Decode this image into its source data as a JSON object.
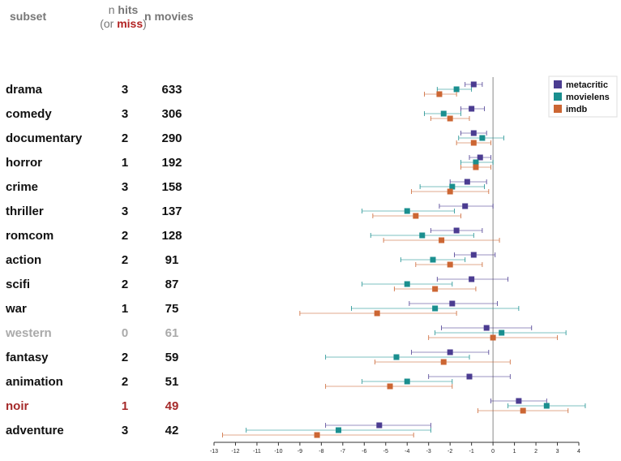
{
  "headers": {
    "subset": "subset",
    "hits_line1_prefix": "n ",
    "hits_line1_bold": "hits",
    "hits_line2_prefix": "(or ",
    "hits_line2_miss": "miss",
    "hits_line2_suffix": ")",
    "movies": "n movies"
  },
  "colors": {
    "metacritic": "#4b3c91",
    "movielens": "#1a8f8f",
    "imdb": "#cc6633",
    "text_default": "#111111",
    "text_western": "#aaaaaa",
    "text_noir": "#a52a2a"
  },
  "chart_data": {
    "type": "scatter",
    "x_ticks": [
      -13,
      -12,
      -11,
      -10,
      -9,
      -8,
      -7,
      -6,
      -5,
      -4,
      -3,
      -2,
      -1,
      0,
      1,
      2,
      3,
      4
    ],
    "xlim": [
      -13,
      4
    ],
    "reference_line_x": 0,
    "legend": [
      "metacritic",
      "movielens",
      "imdb"
    ],
    "legend_placement": "top-right",
    "rows": [
      {
        "subset": "drama",
        "hits": "3",
        "movies": "633",
        "style": "default",
        "metacritic": {
          "est": -0.9,
          "lo": -1.3,
          "hi": -0.5
        },
        "movielens": {
          "est": -1.7,
          "lo": -2.6,
          "hi": -1.0
        },
        "imdb": {
          "est": -2.5,
          "lo": -3.2,
          "hi": -1.7
        }
      },
      {
        "subset": "comedy",
        "hits": "3",
        "movies": "306",
        "style": "default",
        "metacritic": {
          "est": -1.0,
          "lo": -1.5,
          "hi": -0.4
        },
        "movielens": {
          "est": -2.3,
          "lo": -3.2,
          "hi": -1.5
        },
        "imdb": {
          "est": -2.0,
          "lo": -2.9,
          "hi": -1.1
        }
      },
      {
        "subset": "documentary",
        "hits": "2",
        "movies": "290",
        "style": "default",
        "metacritic": {
          "est": -0.9,
          "lo": -1.5,
          "hi": -0.3
        },
        "movielens": {
          "est": -0.5,
          "lo": -1.6,
          "hi": 0.5
        },
        "imdb": {
          "est": -0.9,
          "lo": -1.7,
          "hi": -0.1
        }
      },
      {
        "subset": "horror",
        "hits": "1",
        "movies": "192",
        "style": "default",
        "metacritic": {
          "est": -0.6,
          "lo": -1.1,
          "hi": -0.1
        },
        "movielens": {
          "est": -0.8,
          "lo": -1.5,
          "hi": 0.0
        },
        "imdb": {
          "est": -0.8,
          "lo": -1.5,
          "hi": -0.1
        }
      },
      {
        "subset": "crime",
        "hits": "3",
        "movies": "158",
        "style": "default",
        "metacritic": {
          "est": -1.2,
          "lo": -2.0,
          "hi": -0.3
        },
        "movielens": {
          "est": -1.9,
          "lo": -3.4,
          "hi": -0.4
        },
        "imdb": {
          "est": -2.0,
          "lo": -3.8,
          "hi": -0.2
        }
      },
      {
        "subset": "thriller",
        "hits": "3",
        "movies": "137",
        "style": "default",
        "metacritic": {
          "est": -1.3,
          "lo": -2.5,
          "hi": 0.0
        },
        "movielens": {
          "est": -4.0,
          "lo": -6.1,
          "hi": -1.8
        },
        "imdb": {
          "est": -3.6,
          "lo": -5.6,
          "hi": -1.5
        }
      },
      {
        "subset": "romcom",
        "hits": "2",
        "movies": "128",
        "style": "default",
        "metacritic": {
          "est": -1.7,
          "lo": -2.9,
          "hi": -0.5
        },
        "movielens": {
          "est": -3.3,
          "lo": -5.7,
          "hi": -0.9
        },
        "imdb": {
          "est": -2.4,
          "lo": -5.1,
          "hi": 0.3
        }
      },
      {
        "subset": "action",
        "hits": "2",
        "movies": "91",
        "style": "default",
        "metacritic": {
          "est": -0.9,
          "lo": -1.8,
          "hi": 0.1
        },
        "movielens": {
          "est": -2.8,
          "lo": -4.3,
          "hi": -1.3
        },
        "imdb": {
          "est": -2.0,
          "lo": -3.6,
          "hi": -0.5
        }
      },
      {
        "subset": "scifi",
        "hits": "2",
        "movies": "87",
        "style": "default",
        "metacritic": {
          "est": -1.0,
          "lo": -2.6,
          "hi": 0.7
        },
        "movielens": {
          "est": -4.0,
          "lo": -6.1,
          "hi": -1.9
        },
        "imdb": {
          "est": -2.7,
          "lo": -4.6,
          "hi": -0.8
        }
      },
      {
        "subset": "war",
        "hits": "1",
        "movies": "75",
        "style": "default",
        "metacritic": {
          "est": -1.9,
          "lo": -3.9,
          "hi": 0.2
        },
        "movielens": {
          "est": -2.7,
          "lo": -6.6,
          "hi": 1.2
        },
        "imdb": {
          "est": -5.4,
          "lo": -9.0,
          "hi": -1.7
        }
      },
      {
        "subset": "western",
        "hits": "0",
        "movies": "61",
        "style": "western",
        "metacritic": {
          "est": -0.3,
          "lo": -2.4,
          "hi": 1.8
        },
        "movielens": {
          "est": 0.4,
          "lo": -2.7,
          "hi": 3.4
        },
        "imdb": {
          "est": 0.0,
          "lo": -3.0,
          "hi": 3.0
        }
      },
      {
        "subset": "fantasy",
        "hits": "2",
        "movies": "59",
        "style": "default",
        "metacritic": {
          "est": -2.0,
          "lo": -3.8,
          "hi": -0.2
        },
        "movielens": {
          "est": -4.5,
          "lo": -7.8,
          "hi": -1.1
        },
        "imdb": {
          "est": -2.3,
          "lo": -5.5,
          "hi": 0.8
        }
      },
      {
        "subset": "animation",
        "hits": "2",
        "movies": "51",
        "style": "default",
        "metacritic": {
          "est": -1.1,
          "lo": -3.0,
          "hi": 0.8
        },
        "movielens": {
          "est": -4.0,
          "lo": -6.1,
          "hi": -1.9
        },
        "imdb": {
          "est": -4.8,
          "lo": -7.8,
          "hi": -1.9
        }
      },
      {
        "subset": "noir",
        "hits": "1",
        "movies": "49",
        "style": "noir",
        "metacritic": {
          "est": 1.2,
          "lo": -0.1,
          "hi": 2.5
        },
        "movielens": {
          "est": 2.5,
          "lo": 0.7,
          "hi": 4.3
        },
        "imdb": {
          "est": 1.4,
          "lo": -0.7,
          "hi": 3.5
        }
      },
      {
        "subset": "adventure",
        "hits": "3",
        "movies": "42",
        "style": "default",
        "metacritic": {
          "est": -5.3,
          "lo": -7.8,
          "hi": -2.9
        },
        "movielens": {
          "est": -7.2,
          "lo": -11.5,
          "hi": -2.9
        },
        "imdb": {
          "est": -8.2,
          "lo": -12.6,
          "hi": -3.7
        }
      }
    ]
  }
}
